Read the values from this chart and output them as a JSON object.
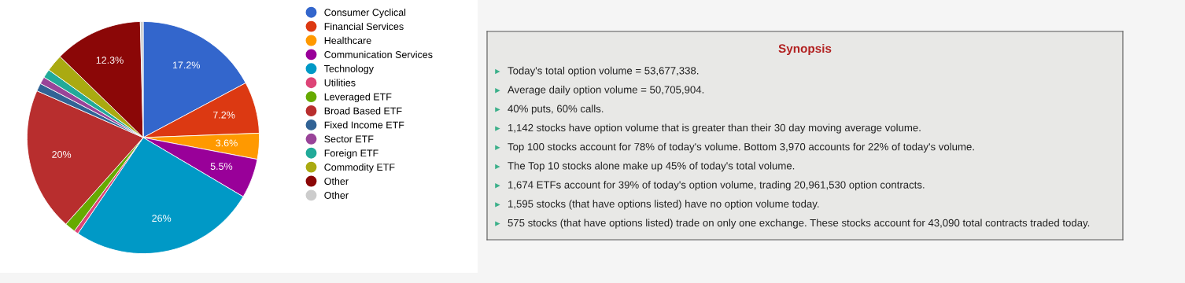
{
  "chart_data": [
    {
      "type": "pie",
      "legend": "right",
      "categories": [
        "Consumer Cyclical",
        "Financial Services",
        "Healthcare",
        "Communication Services",
        "Technology",
        "Utilities",
        "Leveraged ETF",
        "Broad Based ETF",
        "Fixed Income ETF",
        "Sector ETF",
        "Foreign ETF",
        "Commodity ETF",
        "Other",
        "Other"
      ],
      "values": [
        17.2,
        7.2,
        3.6,
        5.5,
        26,
        0.6,
        1.5,
        20,
        1.1,
        1.0,
        1.2,
        2.4,
        12.3,
        0.4
      ],
      "colors": [
        "#3366cc",
        "#dc3912",
        "#ff9900",
        "#990099",
        "#0099c6",
        "#dd4477",
        "#66aa00",
        "#b82e2e",
        "#316395",
        "#994499",
        "#22aa99",
        "#aaaa11",
        "#8b0707",
        "#cccccc"
      ],
      "value_labels": [
        "17.2%",
        "7.2%",
        "3.6%",
        "5.5%",
        "26%",
        null,
        null,
        "20%",
        null,
        null,
        null,
        null,
        "12.3%",
        null
      ]
    },
    {
      "type": "other",
      "title": "Synopsis",
      "annotations": [
        "Today's total option volume = 53,677,338.",
        "Average daily option volume = 50,705,904.",
        "40% puts, 60% calls.",
        "1,142 stocks have option volume that is greater than their 30 day moving average volume.",
        "Top 100 stocks account for 78% of today's volume. Bottom 3,970 accounts for 22% of today's volume.",
        "The Top 10 stocks alone make up 45% of today's total volume.",
        "1,674 ETFs account for 39% of today's option volume, trading 20,961,530 option contracts.",
        "1,595 stocks (that have options listed) have no option volume today.",
        "575 stocks (that have options listed) trade on only one exchange. These stocks account for 43,090 total contracts traded today."
      ]
    }
  ]
}
